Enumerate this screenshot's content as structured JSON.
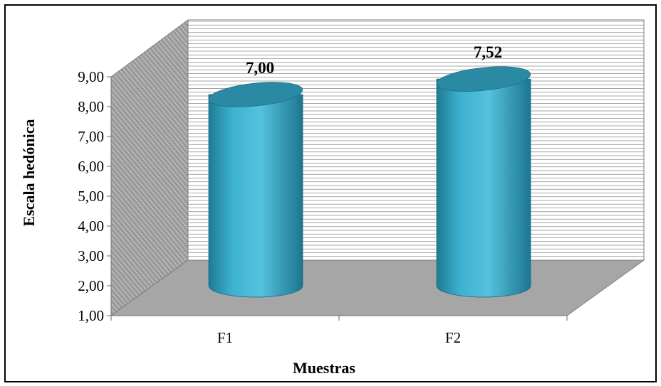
{
  "chart_data": {
    "type": "bar",
    "style": "3d-cylinder",
    "title": "",
    "xlabel": "Muestras",
    "ylabel": "Escala hedónica",
    "categories": [
      "F1",
      "F2"
    ],
    "values": [
      7.0,
      7.52
    ],
    "data_labels": [
      "7,00",
      "7,52"
    ],
    "ylim": [
      1,
      9
    ],
    "y_ticks": [
      "1,00",
      "2,00",
      "3,00",
      "4,00",
      "5,00",
      "6,00",
      "7,00",
      "8,00",
      "9,00"
    ],
    "grid": true,
    "legend": "none",
    "colors": {
      "bar": "#3fb1cf",
      "bar_dark": "#1f7f98",
      "bar_top": "#2a8aa4",
      "wall_back": "#ffffff",
      "wall_side": "#8c8c8c",
      "floor": "#a6a6a6",
      "gridline": "#8a8a8a"
    }
  }
}
